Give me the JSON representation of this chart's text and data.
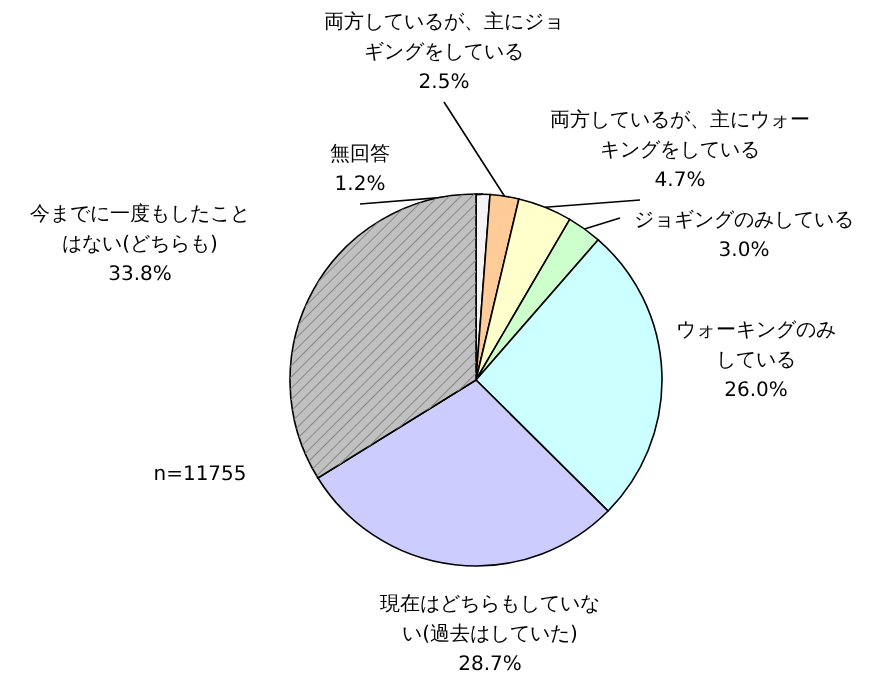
{
  "chart_data": {
    "type": "pie",
    "categories": [
      "無回答",
      "両方しているが、主にジョギングをしている",
      "両方しているが、主にウォーキングをしている",
      "ジョギングのみしている",
      "ウォーキングのみしている",
      "現在はどちらもしていない(過去はしていた)",
      "今までに一度もしたことはない(どちらも)"
    ],
    "values": [
      1.2,
      2.5,
      4.7,
      3.0,
      26.0,
      28.7,
      33.8
    ],
    "value_labels": [
      "1.2%",
      "2.5%",
      "4.7%",
      "3.0%",
      "26.0%",
      "28.7%",
      "33.8%"
    ],
    "colors": [
      "#f4f4f4",
      "#ffcc99",
      "#ffffcc",
      "#ccffcc",
      "#ccffff",
      "#ccccff",
      "#c0c0c0"
    ],
    "annotations": [
      "n=11755"
    ]
  }
}
